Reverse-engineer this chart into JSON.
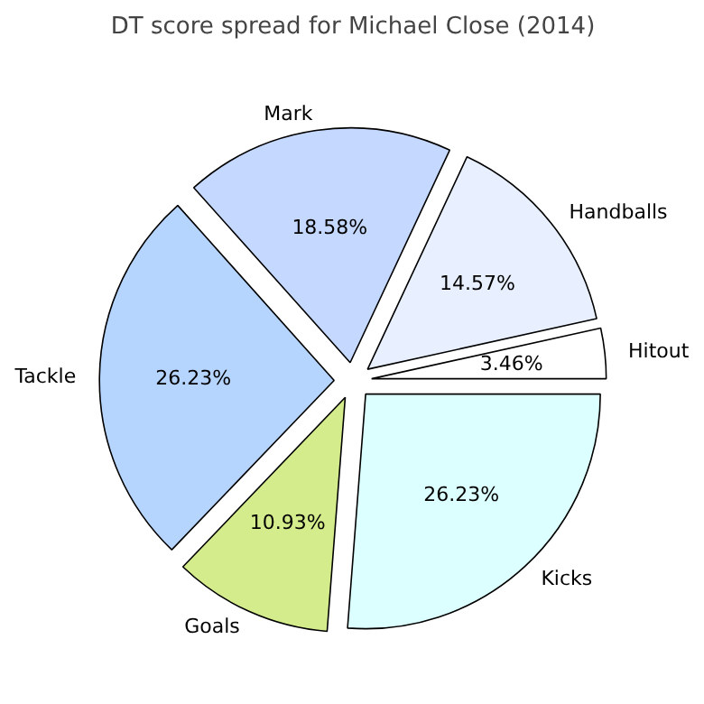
{
  "chart_data": {
    "type": "pie",
    "title": "DT score spread for Michael Close (2014)",
    "categories": [
      "Hitout",
      "Handballs",
      "Mark",
      "Tackle",
      "Goals",
      "Kicks"
    ],
    "values": [
      3.46,
      14.57,
      18.58,
      26.23,
      10.93,
      26.23
    ],
    "colors": [
      "#ffffff",
      "#e8f0ff",
      "#c5d8ff",
      "#b5d5ff",
      "#d4ec8c",
      "#dcffff"
    ],
    "value_labels": [
      "3.46%",
      "14.57%",
      "18.58%",
      "26.23%",
      "10.93%",
      "26.23%"
    ]
  }
}
